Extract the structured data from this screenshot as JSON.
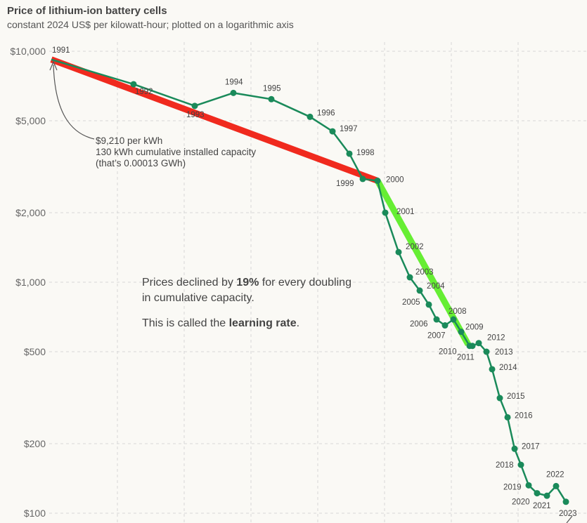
{
  "title": "Price of lithium-ion battery cells",
  "subtitle": "constant 2024 US$ per kilowatt-hour; plotted on a logarithmic axis",
  "annotation_first": [
    "$9,210 per kWh",
    "130 kWh cumulative installed capacity",
    "(that’s 0.00013 GWh)"
  ],
  "note": {
    "line1_pre": "Prices declined by ",
    "line1_bold": "19%",
    "line1_post": " for every doubling",
    "line2": "in cumulative capacity.",
    "line3_pre": "This is called the ",
    "line3_bold": "learning rate",
    "line3_post": "."
  },
  "colors": {
    "series": "#1a8a5a",
    "red_fit": "#f02a1e",
    "green_fit": "#66ee33",
    "grid": "#d8d8d8"
  },
  "chart_data": {
    "type": "line",
    "title": "Price of lithium-ion battery cells",
    "subtitle": "constant 2024 US$ per kilowatt-hour; plotted on a logarithmic axis",
    "y_scale": "log",
    "y_ticks": [
      {
        "value": 10000,
        "label": "$10,000"
      },
      {
        "value": 5000,
        "label": "$5,000"
      },
      {
        "value": 2000,
        "label": "$2,000"
      },
      {
        "value": 1000,
        "label": "$1,000"
      },
      {
        "value": 500,
        "label": "$500"
      },
      {
        "value": 200,
        "label": "$200"
      },
      {
        "value": 100,
        "label": "$100"
      }
    ],
    "grid": true,
    "series": [
      {
        "points": [
          {
            "year": "1991",
            "price": 9210
          },
          {
            "year": "1992",
            "price": 7200
          },
          {
            "year": "1993",
            "price": 5800
          },
          {
            "year": "1994",
            "price": 6600
          },
          {
            "year": "1995",
            "price": 6200
          },
          {
            "year": "1996",
            "price": 5200
          },
          {
            "year": "1997",
            "price": 4500
          },
          {
            "year": "1998",
            "price": 3600
          },
          {
            "year": "1999",
            "price": 2800
          },
          {
            "year": "2000",
            "price": 2750
          },
          {
            "year": "2001",
            "price": 2000
          },
          {
            "year": "2002",
            "price": 1350
          },
          {
            "year": "2003",
            "price": 1050
          },
          {
            "year": "2004",
            "price": 920
          },
          {
            "year": "2005",
            "price": 800
          },
          {
            "year": "2006",
            "price": 690
          },
          {
            "year": "2007",
            "price": 650
          },
          {
            "year": "2008",
            "price": 690
          },
          {
            "year": "2009",
            "price": 610
          },
          {
            "year": "2010",
            "price": 530
          },
          {
            "year": "2011",
            "price": 530
          },
          {
            "year": "2012",
            "price": 545
          },
          {
            "year": "2013",
            "price": 500
          },
          {
            "year": "2014",
            "price": 420
          },
          {
            "year": "2015",
            "price": 315
          },
          {
            "year": "2016",
            "price": 260
          },
          {
            "year": "2017",
            "price": 190
          },
          {
            "year": "2018",
            "price": 162
          },
          {
            "year": "2019",
            "price": 132
          },
          {
            "year": "2020",
            "price": 122
          },
          {
            "year": "2021",
            "price": 119
          },
          {
            "year": "2022",
            "price": 131
          },
          {
            "year": "2023",
            "price": 112
          }
        ]
      }
    ],
    "fit_lines": [
      {
        "color": "red",
        "from_price": 9210,
        "to_price": 2750
      },
      {
        "color": "green",
        "from_price": 2750,
        "to_price": 530
      }
    ]
  }
}
